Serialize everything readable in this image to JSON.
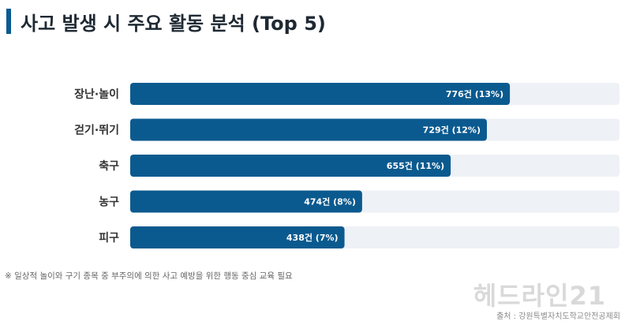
{
  "header": {
    "title": "사고 발생 시 주요 활동 분석 (Top 5)"
  },
  "chart_data": {
    "type": "bar",
    "orientation": "horizontal",
    "categories": [
      "장난·놀이",
      "걷기·뛰기",
      "축구",
      "농구",
      "피구"
    ],
    "values": [
      776,
      729,
      655,
      474,
      438
    ],
    "value_labels": [
      "776건 (13%)",
      "729건 (12%)",
      "655건 (11%)",
      "474건 (8%)",
      "438건 (7%)"
    ],
    "xlim": [
      0,
      1000
    ],
    "grid": false,
    "legend": "none",
    "colors": {
      "bar": "#0b5a8f",
      "track": "#eef1f6"
    }
  },
  "footer": {
    "note": "※ 일상적 놀이와 구기 종목 중 부주의에 의한 사고 예방을 위한 행동 중심 교육 필요",
    "watermark": "헤드라인21",
    "source": "출처 : 강원특별자치도학교안전공제회"
  }
}
